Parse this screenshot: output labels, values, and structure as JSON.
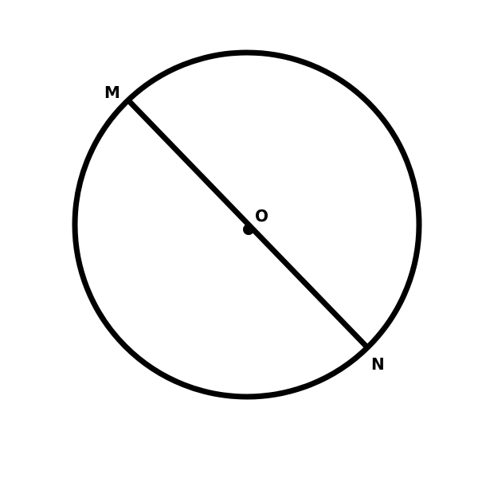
{
  "diagram": {
    "labels": {
      "endpoint_top": "M",
      "center": "O",
      "endpoint_bottom": "N"
    },
    "colors": {
      "stroke": "#000000",
      "background": "#ffffff"
    }
  }
}
